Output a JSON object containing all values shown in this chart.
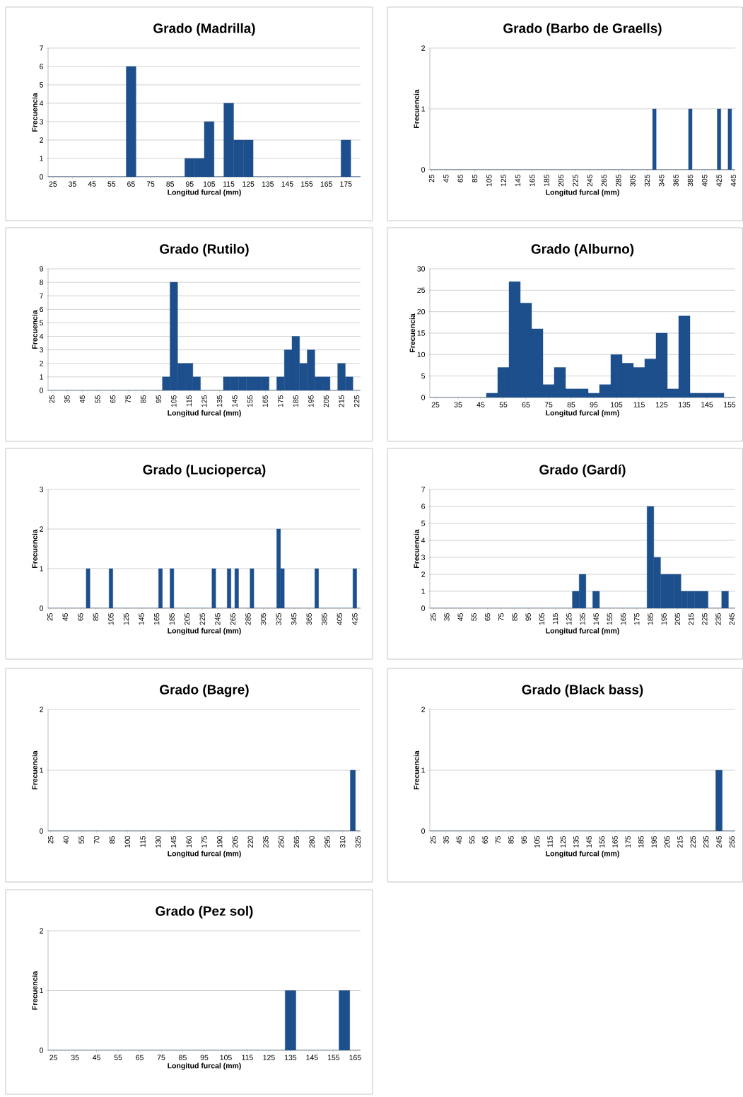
{
  "chart_data": [
    {
      "type": "bar",
      "title": "Grado (Madrilla)",
      "xlabel": "Longitud furcal (mm)",
      "ylabel": "Frecuencia",
      "color": "#1c4f8c",
      "grid": "y",
      "ylim": [
        0,
        7
      ],
      "yticks": [
        0,
        1,
        2,
        3,
        4,
        5,
        6,
        7
      ],
      "categories": [
        "25",
        null,
        "35",
        null,
        "45",
        null,
        "55",
        null,
        "65",
        null,
        "75",
        null,
        "85",
        null,
        "95",
        null,
        "105",
        null,
        "115",
        null,
        "125",
        null,
        "135",
        null,
        "145",
        null,
        "155",
        null,
        "165",
        null,
        "175",
        null
      ],
      "values": [
        0,
        0,
        0,
        0,
        0,
        0,
        0,
        0,
        6,
        0,
        0,
        0,
        0,
        0,
        1,
        1,
        3,
        0,
        4,
        2,
        2,
        0,
        0,
        0,
        0,
        0,
        0,
        0,
        0,
        0,
        2,
        0
      ]
    },
    {
      "type": "bar",
      "title": "Grado (Barbo de Graells)",
      "xlabel": "Longitud furcal (mm)",
      "ylabel": "Frecuencia",
      "color": "#1c4f8c",
      "grid": "y",
      "ylim": [
        0,
        2
      ],
      "yticks": [
        0,
        1,
        2
      ],
      "categories": [
        "25",
        null,
        null,
        null,
        "45",
        null,
        null,
        null,
        "65",
        null,
        null,
        null,
        "85",
        null,
        null,
        null,
        "105",
        null,
        null,
        null,
        "125",
        null,
        null,
        null,
        "145",
        null,
        null,
        null,
        "165",
        null,
        null,
        null,
        "185",
        null,
        null,
        null,
        "205",
        null,
        null,
        null,
        "225",
        null,
        null,
        null,
        "245",
        null,
        null,
        null,
        "265",
        null,
        null,
        null,
        "285",
        null,
        null,
        null,
        "305",
        null,
        null,
        null,
        "325",
        null,
        null,
        null,
        "345",
        null,
        null,
        null,
        "365",
        null,
        null,
        null,
        "385",
        null,
        null,
        null,
        "405",
        null,
        null,
        null,
        "425",
        null,
        null,
        null,
        "445"
      ],
      "values": [
        0,
        0,
        0,
        0,
        0,
        0,
        0,
        0,
        0,
        0,
        0,
        0,
        0,
        0,
        0,
        0,
        0,
        0,
        0,
        0,
        0,
        0,
        0,
        0,
        0,
        0,
        0,
        0,
        0,
        0,
        0,
        0,
        0,
        0,
        0,
        0,
        0,
        0,
        0,
        0,
        0,
        0,
        0,
        0,
        0,
        0,
        0,
        0,
        0,
        0,
        0,
        0,
        0,
        0,
        0,
        0,
        0,
        0,
        0,
        0,
        0,
        0,
        1,
        0,
        0,
        0,
        0,
        0,
        0,
        0,
        0,
        0,
        1,
        0,
        0,
        0,
        0,
        0,
        0,
        0,
        1,
        0,
        0,
        1,
        0
      ]
    },
    {
      "type": "bar",
      "title": "Grado (Rutilo)",
      "xlabel": "Longitud furcal (mm)",
      "ylabel": "Frecuencia",
      "color": "#1c4f8c",
      "grid": "y",
      "ylim": [
        0,
        9
      ],
      "yticks": [
        0,
        1,
        2,
        3,
        4,
        5,
        6,
        7,
        8,
        9
      ],
      "categories": [
        "25",
        null,
        "35",
        null,
        "45",
        null,
        "55",
        null,
        "65",
        null,
        "75",
        null,
        "85",
        null,
        "95",
        null,
        "105",
        null,
        "115",
        null,
        "125",
        null,
        "135",
        null,
        "145",
        null,
        "155",
        null,
        "165",
        null,
        "175",
        null,
        "185",
        null,
        "195",
        null,
        "205",
        null,
        "215",
        null,
        "225"
      ],
      "values": [
        0,
        0,
        0,
        0,
        0,
        0,
        0,
        0,
        0,
        0,
        0,
        0,
        0,
        0,
        0,
        1,
        8,
        2,
        2,
        1,
        0,
        0,
        0,
        1,
        1,
        1,
        1,
        1,
        1,
        0,
        1,
        3,
        4,
        2,
        3,
        1,
        1,
        0,
        2,
        1,
        0
      ]
    },
    {
      "type": "bar",
      "title": "Grado (Alburno)",
      "xlabel": "Longitud furcal (mm)",
      "ylabel": "Frecuencia",
      "color": "#1c4f8c",
      "grid": "y",
      "ylim": [
        0,
        30
      ],
      "yticks": [
        0,
        5,
        10,
        15,
        20,
        25,
        30
      ],
      "categories": [
        "25",
        null,
        "35",
        null,
        "45",
        null,
        "55",
        null,
        "65",
        null,
        "75",
        null,
        "85",
        null,
        "95",
        null,
        "105",
        null,
        "115",
        null,
        "125",
        null,
        "135",
        null,
        "145",
        null,
        "155"
      ],
      "values": [
        0,
        0,
        0,
        0,
        0,
        1,
        7,
        27,
        22,
        16,
        3,
        7,
        2,
        2,
        1,
        3,
        10,
        8,
        7,
        9,
        15,
        2,
        19,
        1,
        1,
        1,
        0
      ]
    },
    {
      "type": "bar",
      "title": "Grado (Lucioperca)",
      "xlabel": "Longitud furcal (mm)",
      "ylabel": "Frecuencia",
      "color": "#1c4f8c",
      "grid": "y",
      "ylim": [
        0,
        3
      ],
      "yticks": [
        0,
        1,
        2,
        3
      ],
      "categories": [
        "25",
        null,
        null,
        null,
        "45",
        null,
        null,
        null,
        "65",
        null,
        null,
        null,
        "85",
        null,
        null,
        null,
        "105",
        null,
        null,
        null,
        "125",
        null,
        null,
        null,
        "145",
        null,
        null,
        null,
        "165",
        null,
        null,
        null,
        "185",
        null,
        null,
        null,
        "205",
        null,
        null,
        null,
        "225",
        null,
        null,
        null,
        "245",
        null,
        null,
        null,
        "265",
        null,
        null,
        null,
        "285",
        null,
        null,
        null,
        "305",
        null,
        null,
        null,
        "325",
        null,
        null,
        null,
        "345",
        null,
        null,
        null,
        "365",
        null,
        null,
        null,
        "385",
        null,
        null,
        null,
        "405",
        null,
        null,
        null,
        "425",
        null
      ],
      "values": [
        0,
        0,
        0,
        0,
        0,
        0,
        0,
        0,
        0,
        0,
        1,
        0,
        0,
        0,
        0,
        0,
        1,
        0,
        0,
        0,
        0,
        0,
        0,
        0,
        0,
        0,
        0,
        0,
        0,
        1,
        0,
        0,
        1,
        0,
        0,
        0,
        0,
        0,
        0,
        0,
        0,
        0,
        0,
        1,
        0,
        0,
        0,
        1,
        0,
        1,
        0,
        0,
        0,
        1,
        0,
        0,
        0,
        0,
        0,
        0,
        2,
        1,
        0,
        0,
        0,
        0,
        0,
        0,
        0,
        0,
        1,
        0,
        0,
        0,
        0,
        0,
        0,
        0,
        0,
        0,
        1,
        0
      ]
    },
    {
      "type": "bar",
      "title": "Grado (Gardí)",
      "xlabel": "Longitud furcal (mm)",
      "ylabel": "Frecuencia",
      "color": "#1c4f8c",
      "grid": "y",
      "ylim": [
        0,
        7
      ],
      "yticks": [
        0,
        1,
        2,
        3,
        4,
        5,
        6,
        7
      ],
      "categories": [
        "25",
        null,
        "35",
        null,
        "45",
        null,
        "55",
        null,
        "65",
        null,
        "75",
        null,
        "85",
        null,
        "95",
        null,
        "105",
        null,
        "115",
        null,
        "125",
        null,
        "135",
        null,
        "145",
        null,
        "155",
        null,
        "165",
        null,
        "175",
        null,
        "185",
        null,
        "195",
        null,
        "205",
        null,
        "215",
        null,
        "225",
        null,
        "235",
        null,
        "245"
      ],
      "values": [
        0,
        0,
        0,
        0,
        0,
        0,
        0,
        0,
        0,
        0,
        0,
        0,
        0,
        0,
        0,
        0,
        0,
        0,
        0,
        0,
        0,
        1,
        2,
        0,
        1,
        0,
        0,
        0,
        0,
        0,
        0,
        0,
        6,
        3,
        2,
        2,
        2,
        1,
        1,
        1,
        1,
        0,
        0,
        1,
        0
      ]
    },
    {
      "type": "bar",
      "title": "Grado (Bagre)",
      "xlabel": "Longitud furcal (mm)",
      "ylabel": "Frecuencia",
      "color": "#1c4f8c",
      "grid": "y",
      "ylim": [
        0,
        2
      ],
      "yticks": [
        0,
        1,
        2
      ],
      "categories": [
        "25",
        null,
        null,
        "40",
        null,
        null,
        "55",
        null,
        null,
        "70",
        null,
        null,
        "85",
        null,
        null,
        "100",
        null,
        null,
        "115",
        null,
        null,
        "130",
        null,
        null,
        "145",
        null,
        null,
        "160",
        null,
        null,
        "175",
        null,
        null,
        "190",
        null,
        null,
        "205",
        null,
        null,
        "220",
        null,
        null,
        "235",
        null,
        null,
        "250",
        null,
        null,
        "265",
        null,
        null,
        "280",
        null,
        null,
        "295",
        null,
        null,
        "310",
        null,
        null,
        "325"
      ],
      "values": [
        0,
        0,
        0,
        0,
        0,
        0,
        0,
        0,
        0,
        0,
        0,
        0,
        0,
        0,
        0,
        0,
        0,
        0,
        0,
        0,
        0,
        0,
        0,
        0,
        0,
        0,
        0,
        0,
        0,
        0,
        0,
        0,
        0,
        0,
        0,
        0,
        0,
        0,
        0,
        0,
        0,
        0,
        0,
        0,
        0,
        0,
        0,
        0,
        0,
        0,
        0,
        0,
        0,
        0,
        0,
        0,
        0,
        0,
        0,
        1,
        0
      ]
    },
    {
      "type": "bar",
      "title": "Grado (Black bass)",
      "xlabel": "Longitud furcal (mm)",
      "ylabel": "Frecuencia",
      "color": "#1c4f8c",
      "grid": "y",
      "ylim": [
        0,
        2
      ],
      "yticks": [
        0,
        1,
        2
      ],
      "categories": [
        "25",
        null,
        "35",
        null,
        "45",
        null,
        "55",
        null,
        "65",
        null,
        "75",
        null,
        "85",
        null,
        "95",
        null,
        "105",
        null,
        "115",
        null,
        "125",
        null,
        "135",
        null,
        "145",
        null,
        "155",
        null,
        "165",
        null,
        "175",
        null,
        "185",
        null,
        "195",
        null,
        "205",
        null,
        "215",
        null,
        "225",
        null,
        "235",
        null,
        "245",
        null,
        "255"
      ],
      "values": [
        0,
        0,
        0,
        0,
        0,
        0,
        0,
        0,
        0,
        0,
        0,
        0,
        0,
        0,
        0,
        0,
        0,
        0,
        0,
        0,
        0,
        0,
        0,
        0,
        0,
        0,
        0,
        0,
        0,
        0,
        0,
        0,
        0,
        0,
        0,
        0,
        0,
        0,
        0,
        0,
        0,
        0,
        0,
        0,
        1,
        0,
        0
      ]
    },
    {
      "type": "bar",
      "title": "Grado (Pez sol)",
      "xlabel": "Longitud furcal (mm)",
      "ylabel": "Frecuencia",
      "color": "#1c4f8c",
      "grid": "y",
      "ylim": [
        0,
        2
      ],
      "yticks": [
        0,
        1,
        2
      ],
      "categories": [
        "25",
        null,
        "35",
        null,
        "45",
        null,
        "55",
        null,
        "65",
        null,
        "75",
        null,
        "85",
        null,
        "95",
        null,
        "105",
        null,
        "115",
        null,
        "125",
        null,
        "135",
        null,
        "145",
        null,
        "155",
        null,
        "165"
      ],
      "values": [
        0,
        0,
        0,
        0,
        0,
        0,
        0,
        0,
        0,
        0,
        0,
        0,
        0,
        0,
        0,
        0,
        0,
        0,
        0,
        0,
        0,
        0,
        1,
        0,
        0,
        0,
        0,
        1,
        0
      ]
    }
  ]
}
